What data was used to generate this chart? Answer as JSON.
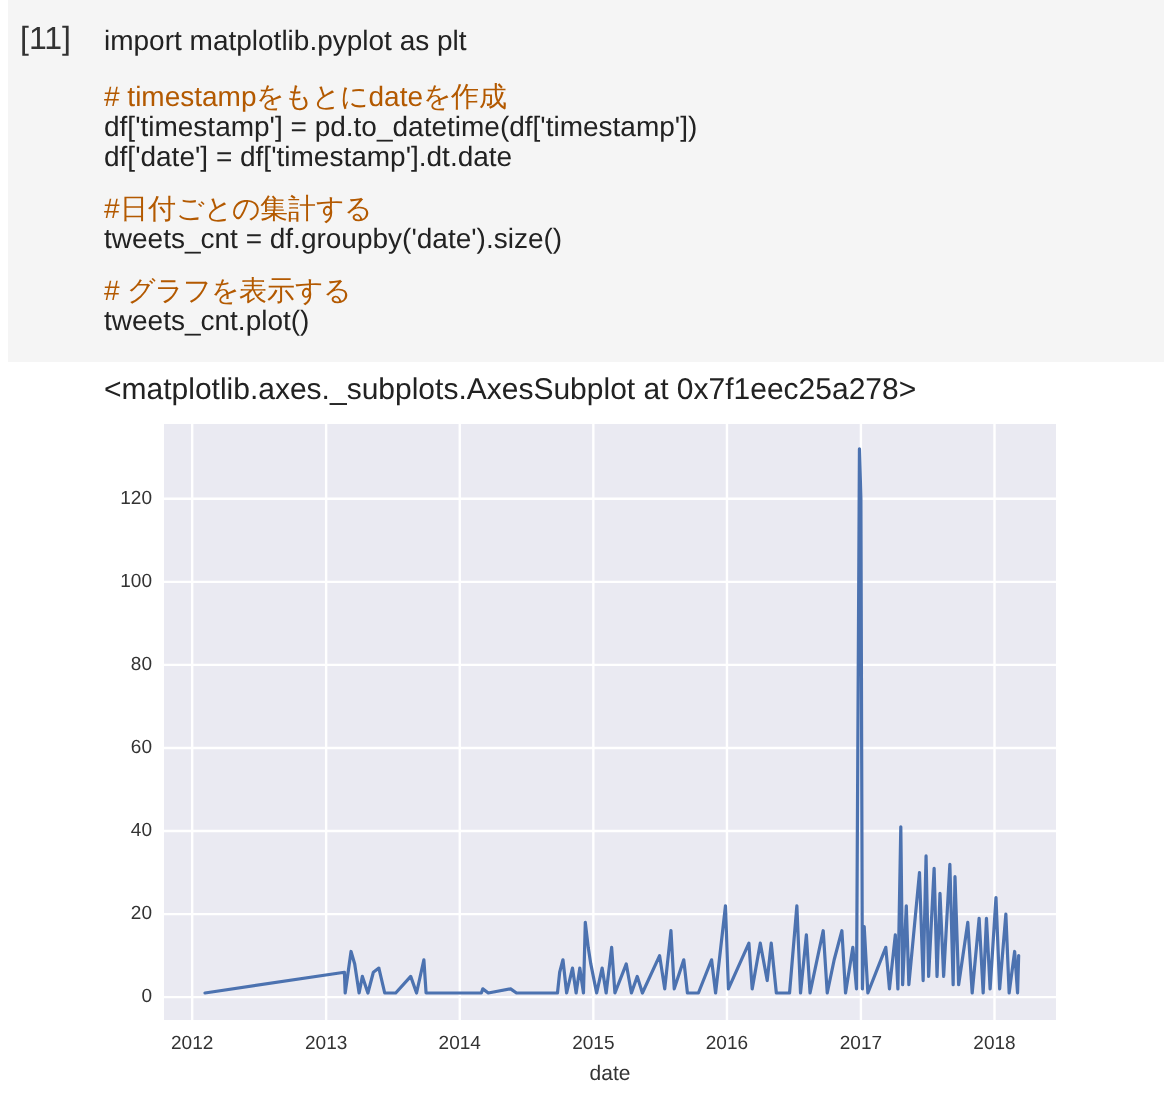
{
  "chart_data": {
    "type": "line",
    "xlabel": "date",
    "annotations": [
      "[11]",
      "import matplotlib.pyplot as plt",
      "# timestampをもとにdateを作成",
      "df['timestamp'] = pd.to_datetime(df['timestamp'])",
      "df['date'] = df['timestamp'].dt.date",
      "#日付ごとの集計する",
      "tweets_cnt = df.groupby('date').size()",
      "# グラフを表示する",
      "tweets_cnt.plot()",
      "<matplotlib.axes._subplots.AxesSubplot at 0x7f1eec25a278>"
    ],
    "xlim": [
      "2011-10-16",
      "2018-06-18"
    ],
    "ylim": [
      -5.5,
      138
    ],
    "xticks": [
      "2012",
      "2013",
      "2014",
      "2015",
      "2016",
      "2017",
      "2018"
    ],
    "yticks": [
      0,
      20,
      40,
      60,
      80,
      100,
      120
    ],
    "grid": true,
    "marker": "none",
    "line_style": "solid",
    "series": [
      {
        "color": "#4c72b0",
        "x": [
          "2012-02-05",
          "2013-02-20",
          "2013-02-22",
          "2013-03-10",
          "2013-03-20",
          "2013-04-01",
          "2013-04-10",
          "2013-04-25",
          "2013-05-10",
          "2013-05-25",
          "2013-06-10",
          "2013-07-10",
          "2013-08-20",
          "2013-09-05",
          "2013-09-25",
          "2013-10-01",
          "2014-03-01",
          "2014-03-05",
          "2014-03-20",
          "2014-05-20",
          "2014-06-05",
          "2014-09-25",
          "2014-10-01",
          "2014-10-10",
          "2014-10-20",
          "2014-11-05",
          "2014-11-15",
          "2014-11-25",
          "2014-12-05",
          "2014-12-10",
          "2014-12-18",
          "2014-12-25",
          "2015-01-10",
          "2015-01-25",
          "2015-02-05",
          "2015-02-20",
          "2015-03-01",
          "2015-04-01",
          "2015-04-15",
          "2015-05-01",
          "2015-05-15",
          "2015-07-01",
          "2015-07-15",
          "2015-08-01",
          "2015-08-10",
          "2015-09-05",
          "2015-09-15",
          "2015-10-15",
          "2015-11-20",
          "2015-12-01",
          "2015-12-28",
          "2016-01-05",
          "2016-03-01",
          "2016-03-10",
          "2016-04-01",
          "2016-04-20",
          "2016-05-01",
          "2016-05-15",
          "2016-06-20",
          "2016-07-10",
          "2016-07-20",
          "2016-08-05",
          "2016-08-15",
          "2016-09-20",
          "2016-10-01",
          "2016-10-20",
          "2016-11-10",
          "2016-11-20",
          "2016-12-10",
          "2016-12-20",
          "2016-12-28",
          "2017-01-01",
          "2017-01-05",
          "2017-01-10",
          "2017-01-20",
          "2017-03-10",
          "2017-03-20",
          "2017-04-05",
          "2017-04-12",
          "2017-04-20",
          "2017-04-25",
          "2017-05-05",
          "2017-05-12",
          "2017-06-10",
          "2017-06-20",
          "2017-06-28",
          "2017-07-05",
          "2017-07-20",
          "2017-07-28",
          "2017-08-05",
          "2017-08-15",
          "2017-09-01",
          "2017-09-10",
          "2017-09-15",
          "2017-09-25",
          "2017-10-20",
          "2017-11-01",
          "2017-11-20",
          "2017-12-01",
          "2017-12-10",
          "2017-12-20",
          "2018-01-05",
          "2018-01-15",
          "2018-02-01",
          "2018-02-10",
          "2018-02-25",
          "2018-03-05",
          "2018-03-08"
        ],
        "values": [
          1,
          6,
          1,
          11,
          8,
          1,
          5,
          1,
          6,
          7,
          1,
          1,
          5,
          1,
          9,
          1,
          1,
          2,
          1,
          2,
          1,
          1,
          6,
          9,
          1,
          7,
          1,
          7,
          1,
          18,
          12,
          8,
          1,
          7,
          1,
          12,
          1,
          8,
          1,
          5,
          1,
          10,
          2,
          16,
          2,
          9,
          1,
          1,
          9,
          1,
          22,
          2,
          13,
          2,
          13,
          4,
          13,
          1,
          1,
          22,
          1,
          15,
          1,
          16,
          1,
          9,
          16,
          1,
          12,
          2,
          132,
          120,
          2,
          17,
          1,
          12,
          2,
          15,
          2,
          41,
          3,
          22,
          3,
          30,
          4,
          34,
          5,
          31,
          5,
          25,
          5,
          32,
          3,
          29,
          3,
          18,
          1,
          19,
          1,
          19,
          2,
          24,
          2,
          20,
          1,
          11,
          1,
          10
        ]
      }
    ]
  }
}
